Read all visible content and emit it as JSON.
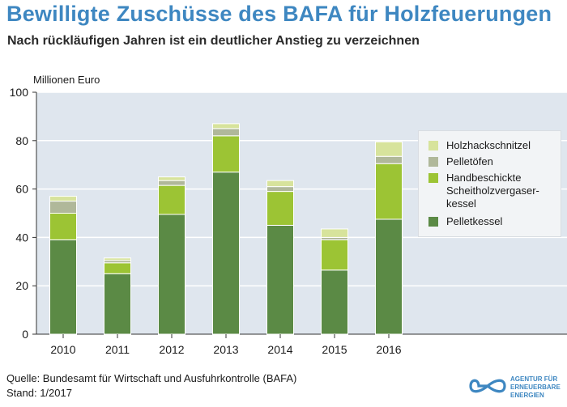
{
  "title": "Bewilligte Zuschüsse des BAFA für Holzfeuerungen",
  "subtitle": "Nach rückläufigen Jahren ist ein deutlicher Anstieg zu verzeichnen",
  "footer": {
    "source": "Quelle: Bundesamt für Wirtschaft und Ausfuhrkontrolle (BAFA)",
    "date": "Stand: 1/2017"
  },
  "logo": {
    "text": "AGENTUR FÜR\nERNEUERBARE\nENERGIEN"
  },
  "colors": {
    "plot_bg": "#dfe6ee",
    "grid": "#ffffff",
    "pelletkessel": "#5b8a45",
    "scheitholz": "#9cc434",
    "pelletoefen": "#b0b89a",
    "holzhack": "#d7e39c"
  },
  "chart_data": {
    "type": "bar",
    "stacked": true,
    "categories": [
      "2010",
      "2011",
      "2012",
      "2013",
      "2014",
      "2015",
      "2016"
    ],
    "series": [
      {
        "name": "Pelletkessel",
        "color": "#5b8a45",
        "values": [
          39,
          25,
          49.5,
          67,
          45,
          26.5,
          47.5
        ]
      },
      {
        "name": "Handbeschickte Scheitholzvergaser-kessel",
        "color": "#9cc434",
        "values": [
          11,
          4.5,
          12,
          15,
          14,
          12.5,
          23
        ]
      },
      {
        "name": "Pelletöfen",
        "color": "#b0b89a",
        "values": [
          5,
          1,
          2,
          3,
          2,
          1,
          3
        ]
      },
      {
        "name": "Holzhackschnitzel",
        "color": "#d7e39c",
        "values": [
          2,
          1,
          1.5,
          2,
          2.5,
          3.5,
          6
        ]
      }
    ],
    "ylabel": "Millionen Euro",
    "ylim": [
      0,
      100
    ],
    "yticks": [
      0,
      20,
      40,
      60,
      80,
      100
    ],
    "grid": true,
    "legend_position": "right",
    "legend": [
      "Holzhackschnitzel",
      "Pelletöfen",
      "Handbeschickte Scheitholzvergaser-kessel",
      "Pelletkessel"
    ]
  }
}
